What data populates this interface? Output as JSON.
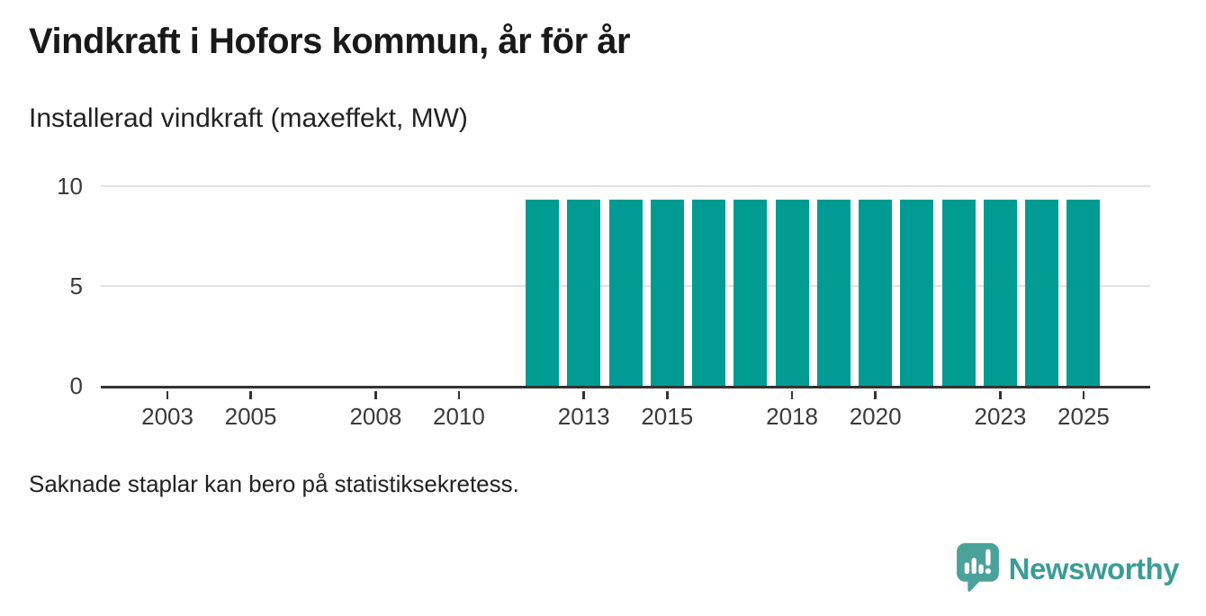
{
  "header": {
    "title": "Vindkraft i Hofors kommun, år för år",
    "subtitle": "Installerad vindkraft (maxeffekt, MW)"
  },
  "chart_data": {
    "type": "bar",
    "title": "Vindkraft i Hofors kommun, år för år",
    "subtitle": "Installerad vindkraft (maxeffekt, MW)",
    "ylabel": "Installerad vindkraft (maxeffekt, MW)",
    "xlabel": "",
    "unit": "MW",
    "x": [
      2012,
      2013,
      2014,
      2015,
      2016,
      2017,
      2018,
      2019,
      2020,
      2021,
      2022,
      2023,
      2024,
      2025
    ],
    "values": [
      9.3,
      9.3,
      9.3,
      9.3,
      9.3,
      9.3,
      9.3,
      9.3,
      9.3,
      9.3,
      9.3,
      9.3,
      9.3,
      9.3
    ],
    "missing_years_note": "2002-2011 have no bars (missing data)",
    "xticks": [
      2003,
      2005,
      2008,
      2010,
      2013,
      2015,
      2018,
      2020,
      2023,
      2025
    ],
    "yticks": [
      0,
      5,
      10
    ],
    "x_range": [
      2001.4,
      2026.6
    ],
    "ylim": [
      0,
      10.53
    ],
    "grid": "horizontal",
    "legend": "none",
    "bar_color": "#009B92",
    "grid_color": "#e2e2e2",
    "axis_color": "#333333"
  },
  "footer": {
    "note": "Saknade staplar kan bero på statistiksekretess."
  },
  "branding": {
    "logo_text": "Newsworthy",
    "logo_text_color": "#3C9C96",
    "logo_icon_color": "#4BA29B",
    "icon": "speech-bubble-bar-chart-icon"
  }
}
